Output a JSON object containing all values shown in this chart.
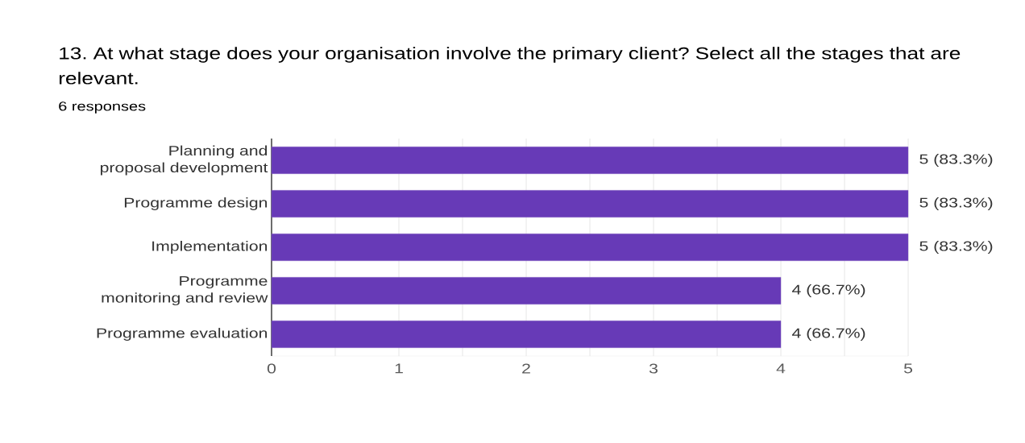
{
  "chart_data": {
    "type": "bar",
    "orientation": "horizontal",
    "title": "13. At what stage does your organisation involve the primary client? Select all the stages that are relevant.",
    "subtitle": "6 responses",
    "categories": [
      "Planning and proposal development",
      "Programme design",
      "Implementation",
      "Programme monitoring and review",
      "Programme evaluation"
    ],
    "values": [
      5,
      5,
      5,
      4,
      4
    ],
    "value_labels": [
      "5 (83.3%)",
      "5 (83.3%)",
      "5 (83.3%)",
      "4 (66.7%)",
      "4 (66.7%)"
    ],
    "color": "#673ab7",
    "xlim": [
      0,
      5
    ],
    "xticks": [
      0,
      {
        "value": 0.5,
        "label": null
      },
      1,
      {
        "value": 1.5,
        "label": null
      },
      2,
      {
        "value": 2.5,
        "label": null
      },
      3,
      {
        "value": 3.5,
        "label": null
      },
      4,
      {
        "value": 4.5,
        "label": null
      },
      5
    ],
    "grid": "x"
  }
}
